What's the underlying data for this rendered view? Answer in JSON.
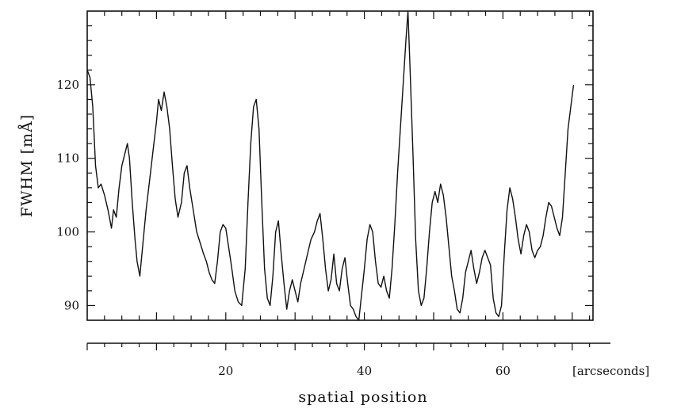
{
  "chart_data": {
    "type": "line",
    "title": "",
    "xlabel": "spatial position",
    "x_unit_label": "[arcseconds]",
    "ylabel": "FWHM [mÅ]",
    "xlim": [
      0,
      73
    ],
    "ylim": [
      88,
      130
    ],
    "x_ticks": [
      20,
      40,
      60
    ],
    "y_ticks": [
      90,
      100,
      110,
      120
    ],
    "grid": false,
    "legend": "none",
    "line_color": "#111111",
    "series": [
      {
        "x": [
          0,
          0.4,
          0.8,
          1.2,
          1.6,
          2.0,
          2.5,
          3.0,
          3.5,
          3.8,
          4.2,
          4.6,
          5.0,
          5.4,
          5.8,
          6.1,
          6.5,
          6.9,
          7.2,
          7.6,
          8.0,
          8.5,
          9.0,
          9.5,
          10.0,
          10.3,
          10.7,
          11.1,
          11.5,
          11.9,
          12.3,
          12.7,
          13.1,
          13.6,
          14.0,
          14.4,
          14.8,
          15.3,
          15.8,
          16.3,
          16.8,
          17.2,
          17.6,
          18.0,
          18.4,
          18.8,
          19.2,
          19.6,
          20.0,
          20.4,
          20.8,
          21.3,
          21.8,
          22.3,
          22.8,
          23.2,
          23.6,
          24.0,
          24.4,
          24.8,
          25.2,
          25.6,
          26.0,
          26.4,
          26.8,
          27.2,
          27.6,
          28.0,
          28.4,
          28.8,
          29.2,
          29.6,
          30.0,
          30.4,
          30.8,
          31.3,
          31.8,
          32.3,
          32.8,
          33.2,
          33.6,
          34.0,
          34.4,
          34.8,
          35.2,
          35.6,
          36.0,
          36.4,
          36.8,
          37.2,
          37.6,
          38.0,
          38.4,
          38.8,
          39.2,
          39.6,
          40.0,
          40.4,
          40.8,
          41.2,
          41.6,
          42.0,
          42.4,
          42.8,
          43.2,
          43.6,
          44.0,
          44.4,
          44.8,
          45.2,
          45.6,
          46.0,
          46.3,
          46.6,
          47.0,
          47.4,
          47.8,
          48.2,
          48.6,
          49.0,
          49.4,
          49.8,
          50.2,
          50.6,
          51.0,
          51.4,
          51.8,
          52.2,
          52.6,
          53.0,
          53.4,
          53.8,
          54.2,
          54.6,
          55.0,
          55.4,
          55.8,
          56.2,
          56.6,
          57.0,
          57.4,
          57.8,
          58.2,
          58.6,
          59.0,
          59.4,
          59.8,
          60.2,
          60.6,
          61.0,
          61.4,
          61.8,
          62.2,
          62.6,
          63.0,
          63.4,
          63.8,
          64.2,
          64.6,
          65.0,
          65.4,
          65.8,
          66.2,
          66.6,
          67.0,
          67.4,
          67.8,
          68.2,
          68.6,
          69.0,
          69.4,
          69.8,
          70.2
        ],
        "y": [
          122,
          121,
          117,
          109,
          106,
          106.5,
          105,
          103,
          100.5,
          103,
          102,
          106,
          109,
          110.5,
          112,
          110,
          104,
          99,
          96,
          94,
          98,
          103,
          107,
          111,
          115,
          118,
          116.5,
          119,
          117,
          114,
          109,
          104.5,
          102,
          104,
          108,
          109,
          106,
          103,
          100,
          98.5,
          97,
          96,
          94.5,
          93.5,
          93,
          96,
          100,
          101,
          100.5,
          98,
          95.5,
          92,
          90.5,
          90,
          95,
          104,
          112,
          117,
          118,
          114,
          104,
          95,
          91,
          90,
          94,
          100,
          101.5,
          97,
          93,
          89.5,
          92,
          93.5,
          92,
          90.5,
          93,
          95,
          97,
          99,
          100,
          101.5,
          102.5,
          99,
          95,
          92,
          93.5,
          97,
          93,
          92,
          95,
          96.5,
          93,
          90,
          89.5,
          88.5,
          88,
          91.5,
          95,
          99,
          101,
          100,
          96,
          93,
          92.5,
          94,
          92,
          91,
          95,
          101,
          108,
          114,
          120,
          126,
          130,
          122,
          111,
          99,
          92,
          90,
          91,
          95,
          100,
          104,
          105.5,
          104,
          106.5,
          105,
          102,
          98,
          94,
          92,
          89.5,
          89,
          91,
          94.5,
          96,
          97.5,
          95,
          93,
          94.5,
          96.5,
          97.5,
          96.5,
          95.5,
          91,
          89,
          88.5,
          90,
          97,
          103,
          106,
          104.5,
          102,
          99,
          97,
          99.5,
          101,
          100,
          97.5,
          96.5,
          97.5,
          98,
          99.5,
          102,
          104,
          103.5,
          102,
          100.5,
          99.5,
          102,
          108,
          114,
          117,
          120
        ]
      }
    ]
  }
}
